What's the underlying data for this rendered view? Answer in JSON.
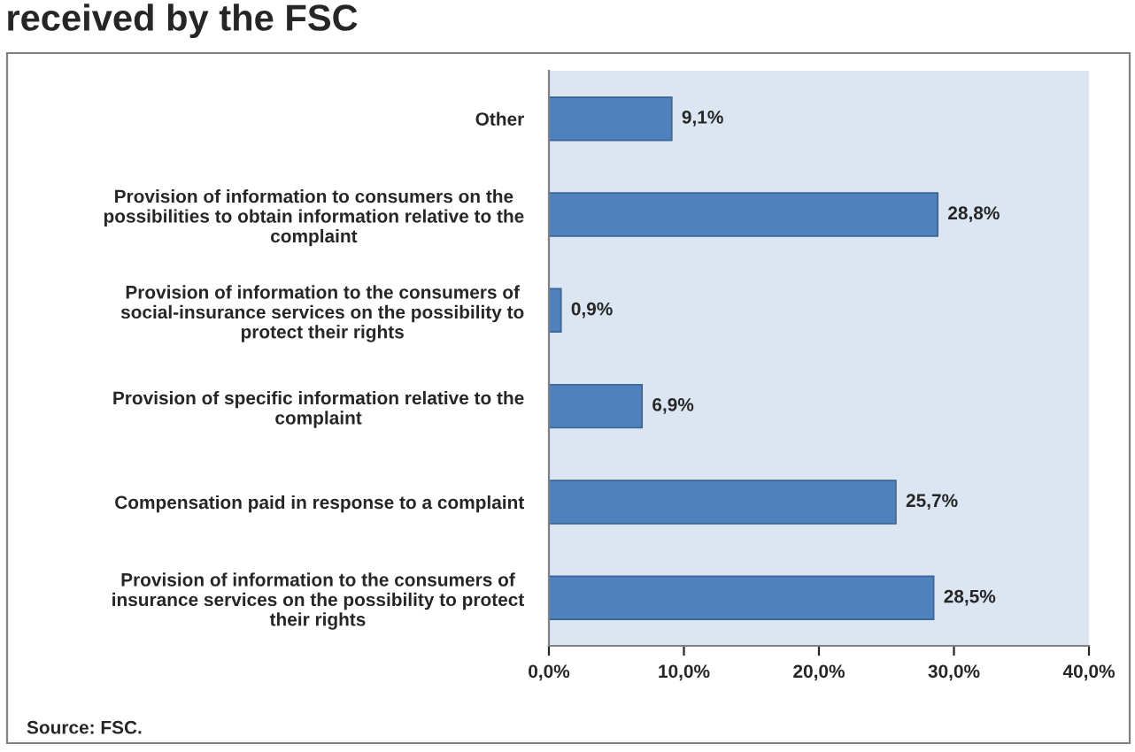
{
  "chart_data": {
    "type": "bar",
    "orientation": "horizontal",
    "title": "received by the FSC",
    "categories": [
      "Other",
      "Provision of information to consumers on the\npossibilities to obtain information relative to the\ncomplaint",
      "Provision of information to the consumers of\nsocial-insurance services on the possibility to\nprotect their rights",
      "Provision of specific information relative to the\ncomplaint",
      "Compensation paid in response to a complaint",
      "Provision of information to the consumers of\ninsurance services on the possibility to protect\ntheir rights"
    ],
    "values": [
      9.1,
      28.8,
      0.9,
      6.9,
      25.7,
      28.5
    ],
    "value_labels": [
      "9,1%",
      "28,8%",
      "0,9%",
      "6,9%",
      "25,7%",
      "28,5%"
    ],
    "color": "#4f81bd",
    "xlim": [
      0,
      40
    ],
    "xticks": [
      {
        "value": 0,
        "label": "0,0%"
      },
      {
        "value": 10,
        "label": "10,0%"
      },
      {
        "value": 20,
        "label": "20,0%"
      },
      {
        "value": 30,
        "label": "30,0%"
      },
      {
        "value": 40,
        "label": "40,0%"
      }
    ],
    "grid": false,
    "legend": false,
    "annotations": [
      "Source: FSC."
    ]
  }
}
